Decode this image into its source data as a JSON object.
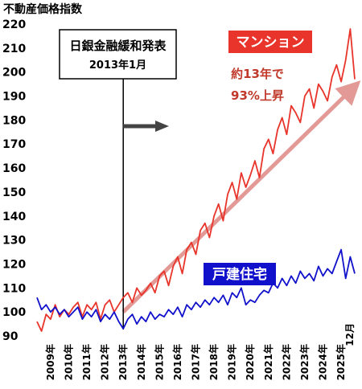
{
  "chart_data": {
    "type": "line",
    "title": "不動産価格指数",
    "ylim": [
      90,
      220
    ],
    "yticks": [
      90,
      100,
      110,
      120,
      130,
      140,
      150,
      160,
      170,
      180,
      190,
      200,
      210,
      220
    ],
    "x_tick_labels": [
      "2009年",
      "2010年",
      "2011年",
      "2012年",
      "2013年",
      "2014年",
      "2015年",
      "2016年",
      "2017年",
      "2018年",
      "2019年",
      "2020年",
      "2021年",
      "2022年",
      "2023年",
      "2024年",
      "2025年"
    ],
    "x_range": [
      2008.25,
      2025.75
    ],
    "end_month_label": "12月",
    "colors": {
      "mansion": "#e8342a",
      "house": "#1111cc",
      "trend": "#e39a96",
      "arrow": "#444444"
    },
    "series": [
      {
        "name": "マンション",
        "x": [
          2008.25,
          2008.5,
          2008.75,
          2009.0,
          2009.25,
          2009.5,
          2009.75,
          2010.0,
          2010.25,
          2010.5,
          2010.75,
          2011.0,
          2011.25,
          2011.5,
          2011.75,
          2012.0,
          2012.25,
          2012.5,
          2012.75,
          2013.0,
          2013.25,
          2013.5,
          2013.75,
          2014.0,
          2014.25,
          2014.5,
          2014.75,
          2015.0,
          2015.25,
          2015.5,
          2015.75,
          2016.0,
          2016.25,
          2016.5,
          2016.75,
          2017.0,
          2017.25,
          2017.5,
          2017.75,
          2018.0,
          2018.25,
          2018.5,
          2018.75,
          2019.0,
          2019.25,
          2019.5,
          2019.75,
          2020.0,
          2020.25,
          2020.5,
          2020.75,
          2021.0,
          2021.25,
          2021.5,
          2021.75,
          2022.0,
          2022.25,
          2022.5,
          2022.75,
          2023.0,
          2023.25,
          2023.5,
          2023.75,
          2024.0,
          2024.25,
          2024.5,
          2024.75,
          2025.0,
          2025.25,
          2025.5,
          2025.75
        ],
        "values": [
          96,
          92,
          99,
          97,
          103,
          98,
          101,
          99,
          102,
          104,
          98,
          103,
          101,
          104,
          97,
          103,
          105,
          100,
          103,
          106,
          108,
          104,
          110,
          107,
          109,
          112,
          108,
          115,
          117,
          111,
          119,
          123,
          116,
          126,
          129,
          124,
          134,
          137,
          131,
          140,
          145,
          138,
          149,
          154,
          147,
          158,
          152,
          157,
          163,
          156,
          168,
          172,
          166,
          176,
          181,
          174,
          186,
          183,
          179,
          190,
          193,
          185,
          195,
          192,
          188,
          198,
          203,
          196,
          205,
          218,
          197
        ]
      },
      {
        "name": "戸建住宅",
        "x": [
          2008.25,
          2008.5,
          2008.75,
          2009.0,
          2009.25,
          2009.5,
          2009.75,
          2010.0,
          2010.25,
          2010.5,
          2010.75,
          2011.0,
          2011.25,
          2011.5,
          2011.75,
          2012.0,
          2012.25,
          2012.5,
          2012.75,
          2013.0,
          2013.25,
          2013.5,
          2013.75,
          2014.0,
          2014.25,
          2014.5,
          2014.75,
          2015.0,
          2015.25,
          2015.5,
          2015.75,
          2016.0,
          2016.25,
          2016.5,
          2016.75,
          2017.0,
          2017.25,
          2017.5,
          2017.75,
          2018.0,
          2018.25,
          2018.5,
          2018.75,
          2019.0,
          2019.25,
          2019.5,
          2019.75,
          2020.0,
          2020.25,
          2020.5,
          2020.75,
          2021.0,
          2021.25,
          2021.5,
          2021.75,
          2022.0,
          2022.25,
          2022.5,
          2022.75,
          2023.0,
          2023.25,
          2023.5,
          2023.75,
          2024.0,
          2024.25,
          2024.5,
          2024.75,
          2025.0,
          2025.25,
          2025.5,
          2025.75
        ],
        "values": [
          106,
          101,
          103,
          100,
          102,
          99,
          101,
          98,
          100,
          102,
          97,
          100,
          98,
          101,
          96,
          99,
          97,
          100,
          96,
          93,
          97,
          99,
          95,
          98,
          96,
          100,
          97,
          99,
          98,
          101,
          99,
          102,
          98,
          103,
          101,
          104,
          102,
          105,
          103,
          106,
          104,
          107,
          103,
          108,
          106,
          110,
          103,
          105,
          104,
          107,
          109,
          108,
          112,
          110,
          114,
          111,
          115,
          112,
          117,
          114,
          116,
          113,
          119,
          115,
          118,
          116,
          121,
          126,
          114,
          123,
          116
        ]
      }
    ],
    "annotations": {
      "boj_title": "日銀金融緩和発表",
      "boj_date": "2013年1月",
      "boj_x": 2013.0,
      "mansion_label": "マンション",
      "mansion_note_line1": "約13年で",
      "mansion_note_line2": "93%上昇",
      "house_label": "戸建住宅",
      "trend_from": [
        2013.0,
        100
      ],
      "trend_to": [
        2025.6,
        193
      ]
    }
  }
}
